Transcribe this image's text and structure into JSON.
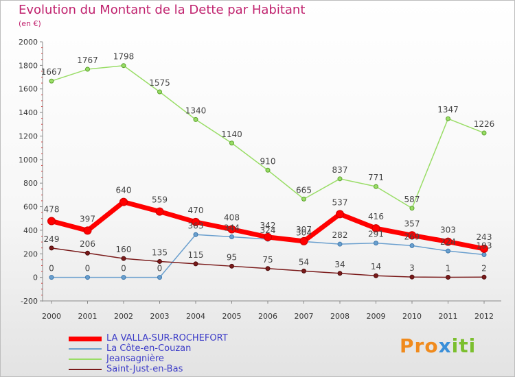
{
  "title": "Evolution du Montant de la Dette par Habitant",
  "subtitle": "(en €)",
  "logo": "Proxiti",
  "chart_data": {
    "type": "line",
    "title": "Evolution du Montant de la Dette par Habitant",
    "subtitle": "(en €)",
    "xlabel": "",
    "ylabel": "",
    "x": [
      "2000",
      "2001",
      "2002",
      "2003",
      "2004",
      "2005",
      "2006",
      "2007",
      "2008",
      "2009",
      "2010",
      "2011",
      "2012"
    ],
    "ylim": [
      -200,
      2000
    ],
    "yticks": [
      -200,
      0,
      200,
      400,
      600,
      800,
      1000,
      1200,
      1400,
      1600,
      1800,
      2000
    ],
    "grid": false,
    "legend_position": "bottom-left",
    "series": [
      {
        "name": "LA VALLA-SUR-ROCHEFORT",
        "color": "#ff0000",
        "values": [
          478,
          397,
          640,
          559,
          470,
          408,
          342,
          307,
          537,
          416,
          357,
          303,
          243
        ]
      },
      {
        "name": "La Côte-en-Couzan",
        "color": "#6a9fce",
        "values": [
          0,
          0,
          0,
          0,
          363,
          344,
          324,
          304,
          282,
          291,
          269,
          224,
          193
        ]
      },
      {
        "name": "Jeansagnière",
        "color": "#99dd66",
        "values": [
          1667,
          1767,
          1798,
          1575,
          1340,
          1140,
          910,
          665,
          837,
          771,
          587,
          1347,
          1226
        ]
      },
      {
        "name": "Saint-Just-en-Bas",
        "color": "#7a1a1a",
        "values": [
          249,
          206,
          160,
          135,
          115,
          95,
          75,
          54,
          34,
          14,
          3,
          1,
          2
        ]
      }
    ]
  }
}
